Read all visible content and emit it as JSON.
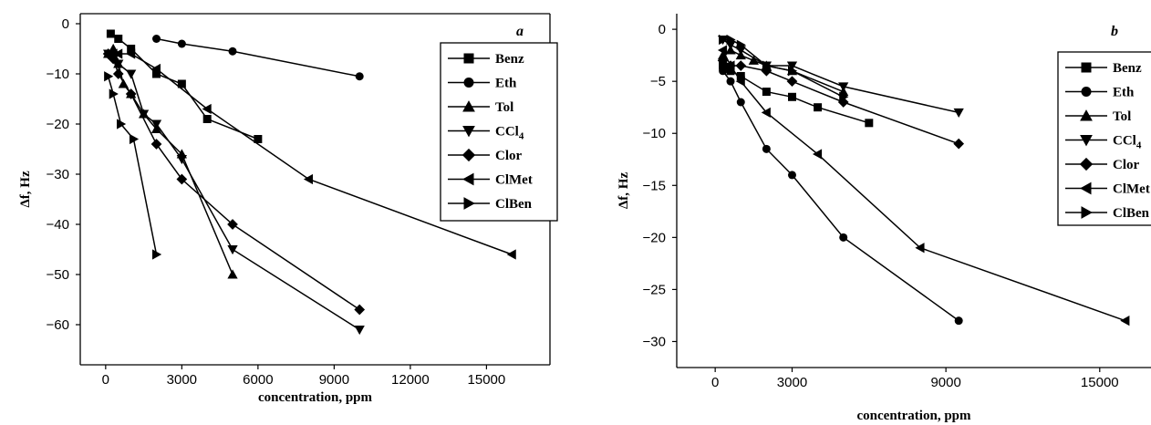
{
  "chart_data": [
    {
      "type": "line",
      "panel_label": "a",
      "xlabel": "concentration, ppm",
      "ylabel": "Δf, Hz",
      "xlim": [
        -1000,
        17500
      ],
      "ylim": [
        -68,
        2
      ],
      "xticks": [
        0,
        3000,
        6000,
        9000,
        12000,
        15000
      ],
      "yticks": [
        0,
        -10,
        -20,
        -30,
        -40,
        -50,
        -60
      ],
      "legend_position": "top-right",
      "series": [
        {
          "name": "Benz",
          "marker": "square",
          "x": [
            200,
            500,
            1000,
            2000,
            3000,
            4000,
            6000
          ],
          "y": [
            -2,
            -3,
            -5,
            -10,
            -12,
            -19,
            -23
          ]
        },
        {
          "name": "Eth",
          "marker": "circle",
          "x": [
            2000,
            3000,
            5000,
            10000
          ],
          "y": [
            -3,
            -4,
            -5.5,
            -10.5
          ]
        },
        {
          "name": "Tol",
          "marker": "triangle-up",
          "x": [
            100,
            300,
            500,
            700,
            1000,
            1500,
            2000,
            3000,
            5000
          ],
          "y": [
            -6,
            -5,
            -8,
            -12,
            -14,
            -18,
            -21,
            -26,
            -50
          ]
        },
        {
          "name": "CCl4",
          "name_base": "CCl",
          "name_sub": "4",
          "marker": "triangle-down",
          "x": [
            100,
            300,
            500,
            1000,
            1500,
            2000,
            3000,
            5000,
            10000
          ],
          "y": [
            -6,
            -7,
            -8,
            -10,
            -18,
            -20,
            -27,
            -45,
            -61
          ]
        },
        {
          "name": "Clor",
          "marker": "diamond",
          "x": [
            100,
            300,
            500,
            1000,
            2000,
            3000,
            5000,
            10000
          ],
          "y": [
            -6,
            -7,
            -10,
            -14,
            -24,
            -31,
            -40,
            -57
          ]
        },
        {
          "name": "ClMet",
          "marker": "triangle-left",
          "x": [
            100,
            300,
            500,
            1000,
            2000,
            4000,
            8000,
            16000
          ],
          "y": [
            -6,
            -6,
            -6,
            -6,
            -9,
            -17,
            -31,
            -46
          ]
        },
        {
          "name": "ClBen",
          "marker": "triangle-right",
          "x": [
            100,
            300,
            600,
            1100,
            2000
          ],
          "y": [
            -10.5,
            -14,
            -20,
            -23,
            -46
          ]
        }
      ]
    },
    {
      "type": "line",
      "panel_label": "b",
      "xlabel": "concentration, ppm",
      "ylabel": "Δf, Hz",
      "xlim": [
        -1500,
        17000
      ],
      "ylim": [
        -32.5,
        1.5
      ],
      "xticks": [
        0,
        3000,
        9000,
        15000
      ],
      "yticks": [
        0,
        -5,
        -10,
        -15,
        -20,
        -25,
        -30
      ],
      "legend_position": "top-right",
      "series": [
        {
          "name": "Benz",
          "marker": "square",
          "x": [
            300,
            600,
            1000,
            2000,
            3000,
            4000,
            6000
          ],
          "y": [
            -3.5,
            -4,
            -4.5,
            -6,
            -6.5,
            -7.5,
            -9
          ]
        },
        {
          "name": "Eth",
          "marker": "circle",
          "x": [
            300,
            600,
            1000,
            2000,
            3000,
            5000,
            9500
          ],
          "y": [
            -4,
            -5,
            -7,
            -11.5,
            -14,
            -20,
            -28
          ]
        },
        {
          "name": "Tol",
          "marker": "triangle-up",
          "x": [
            300,
            600,
            1000,
            1500,
            2000,
            3000,
            5000
          ],
          "y": [
            -2.5,
            -2,
            -2.5,
            -3,
            -3.5,
            -4,
            -6
          ]
        },
        {
          "name": "CCl4",
          "name_base": "CCl",
          "name_sub": "4",
          "marker": "triangle-down",
          "x": [
            300,
            600,
            1000,
            2000,
            3000,
            5000,
            9500
          ],
          "y": [
            -1,
            -1.5,
            -2,
            -3.5,
            -3.5,
            -5.5,
            -8
          ]
        },
        {
          "name": "Clor",
          "marker": "diamond",
          "x": [
            300,
            600,
            1000,
            2000,
            3000,
            5000,
            9500
          ],
          "y": [
            -3,
            -3.5,
            -3.5,
            -4,
            -5,
            -7,
            -11
          ]
        },
        {
          "name": "ClMet",
          "marker": "triangle-left",
          "x": [
            300,
            600,
            1000,
            2000,
            4000,
            8000,
            16000
          ],
          "y": [
            -2,
            -3.5,
            -5,
            -8,
            -12,
            -21,
            -28
          ]
        },
        {
          "name": "ClBen",
          "marker": "triangle-right",
          "x": [
            300,
            600,
            1000,
            2000,
            3000,
            5000
          ],
          "y": [
            -1,
            -1,
            -1.5,
            -3.5,
            -4,
            -6.5
          ]
        }
      ]
    }
  ]
}
